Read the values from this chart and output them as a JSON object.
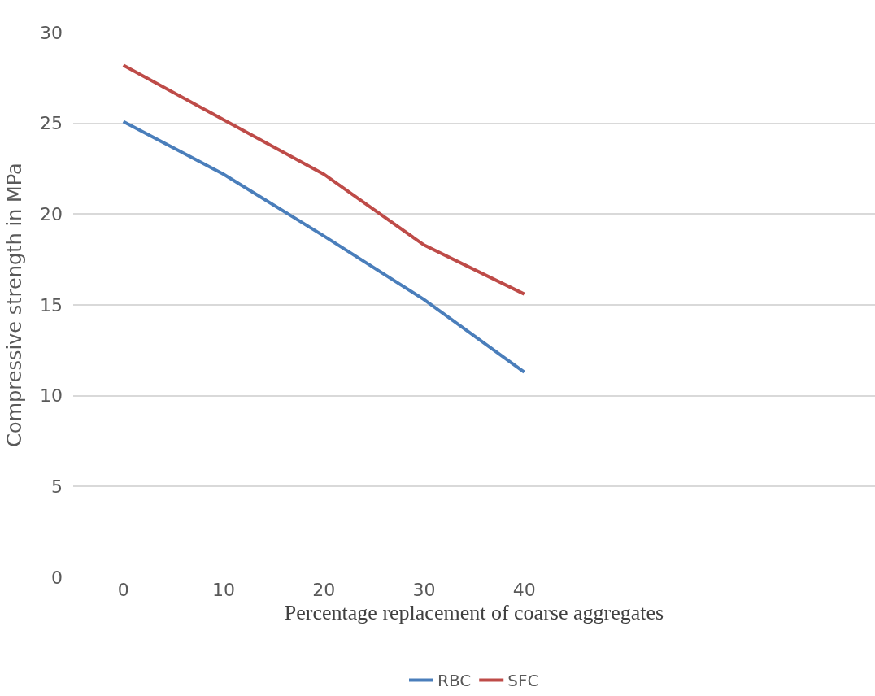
{
  "chart_data": {
    "type": "line",
    "xlabel": "Percentage replacement of coarse aggregates",
    "ylabel": "Compressive strength in MPa",
    "categories": [
      "0",
      "10",
      "20",
      "30",
      "40",
      null,
      null,
      null
    ],
    "series": [
      {
        "name": "RBC",
        "color": "#4a7ebb",
        "values": [
          25.1,
          22.2,
          18.8,
          15.3,
          11.3,
          null,
          null,
          null
        ]
      },
      {
        "name": "SFC",
        "color": "#be4b48",
        "values": [
          28.2,
          25.2,
          22.2,
          18.3,
          15.6,
          null,
          null,
          null
        ]
      }
    ],
    "ylim": [
      0,
      30
    ],
    "yticks": [
      0,
      5,
      10,
      15,
      20,
      25,
      30
    ],
    "grid": "y",
    "legend": "bottom",
    "marker": "none",
    "line_style": "solid"
  }
}
